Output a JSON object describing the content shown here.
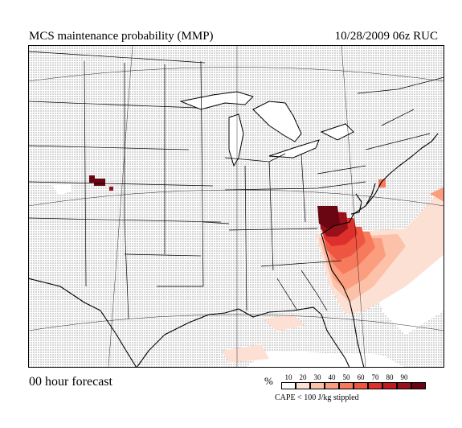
{
  "header": {
    "title": "MCS maintenance probability (MMP)",
    "valid": "10/28/2009  06z  RUC"
  },
  "footer": {
    "forecast": "00 hour forecast",
    "unit": "%",
    "note": "CAPE < 100 J/kg stippled"
  },
  "legend": [
    {
      "label": "10",
      "color": "#fde0d4"
    },
    {
      "label": "20",
      "color": "#fcc1a9"
    },
    {
      "label": "30",
      "color": "#fb9e80"
    },
    {
      "label": "40",
      "color": "#f77a5d"
    },
    {
      "label": "50",
      "color": "#ef5641"
    },
    {
      "label": "60",
      "color": "#dd2f2b"
    },
    {
      "label": "70",
      "color": "#c01a1f"
    },
    {
      "label": "80",
      "color": "#98101a"
    },
    {
      "label": "90",
      "color": "#6a0612"
    }
  ],
  "map": {
    "stipple": "stippled",
    "boundary_color": "#000000"
  }
}
